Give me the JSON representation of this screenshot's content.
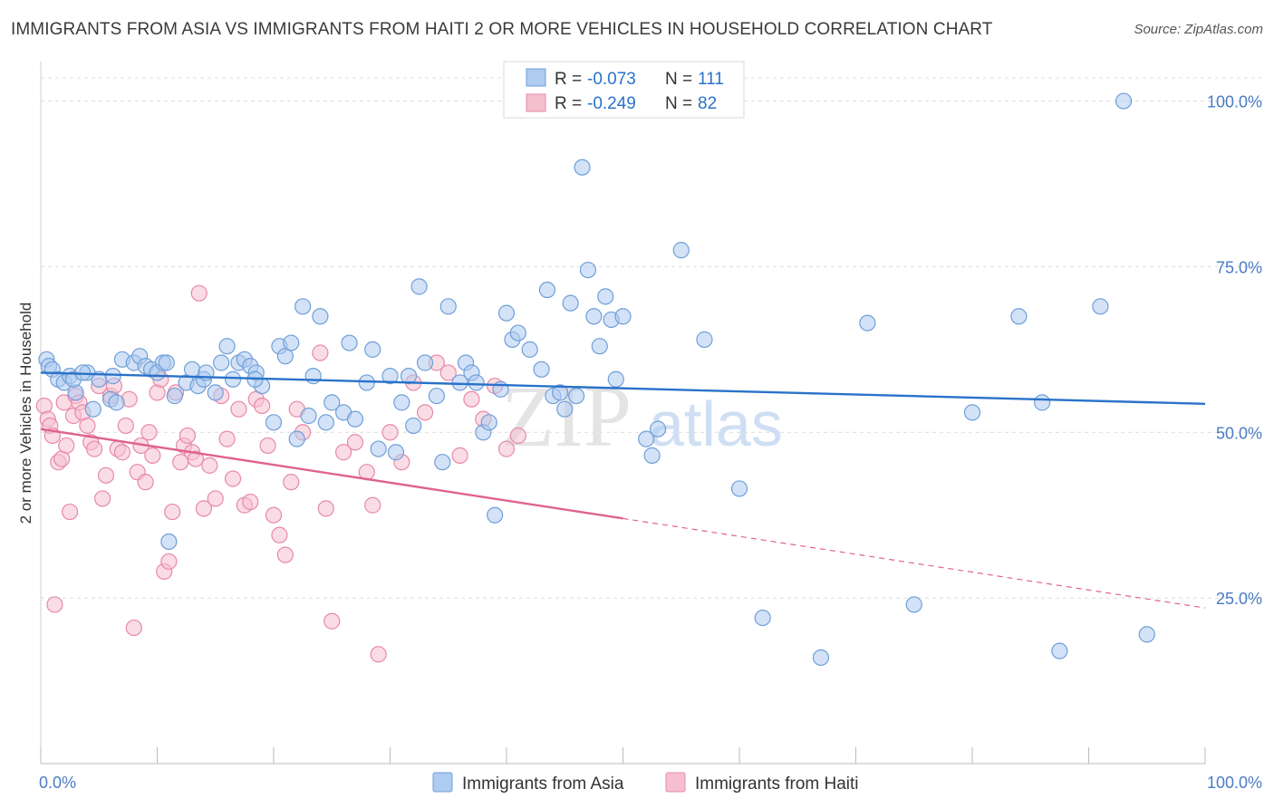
{
  "title": "IMMIGRANTS FROM ASIA VS IMMIGRANTS FROM HAITI 2 OR MORE VEHICLES IN HOUSEHOLD CORRELATION CHART",
  "source": "Source: ZipAtlas.com",
  "watermark": {
    "zip": "ZIP",
    "atlas": "atlas"
  },
  "colors": {
    "asia_fill": "#aecbf0",
    "asia_stroke": "#6f9fd8",
    "asia_line": "#2a72c9",
    "haiti_fill": "#f6bfd0",
    "haiti_stroke": "#e889a8",
    "haiti_line": "#e0628d",
    "tick_text": "#4a7cc4",
    "grid": "#dcdcdc"
  },
  "legend_box": {
    "rows": [
      {
        "r_label": "R = ",
        "r_value": "-0.073",
        "n_label": "N = ",
        "n_value": "111"
      },
      {
        "r_label": "R = ",
        "r_value": "-0.249",
        "n_label": "N = ",
        "n_value": "82"
      }
    ]
  },
  "chart_data": {
    "type": "scatter",
    "title": "IMMIGRANTS FROM ASIA VS IMMIGRANTS FROM HAITI 2 OR MORE VEHICLES IN HOUSEHOLD CORRELATION CHART",
    "xlabel": "",
    "ylabel": "2 or more Vehicles in Household",
    "xlim": [
      0,
      100
    ],
    "ylim": [
      0,
      105
    ],
    "x_tick_labels": [
      "0.0%",
      "100.0%"
    ],
    "y_ticks": [
      25,
      50,
      75,
      100
    ],
    "y_tick_labels": [
      "25.0%",
      "50.0%",
      "75.0%",
      "100.0%"
    ],
    "grid": true,
    "legend_position": "bottom-center",
    "series": [
      {
        "name": "Immigrants from Asia",
        "color": "#aecbf0",
        "r": -0.073,
        "n": 111,
        "trend": {
          "x": [
            0,
            100
          ],
          "y": [
            59.0,
            54.3
          ],
          "dashed_from": null
        },
        "x": [
          0.5,
          0.7,
          1.0,
          1.5,
          2.0,
          2.5,
          3.0,
          4.0,
          4.5,
          5.0,
          6.0,
          6.5,
          7.0,
          8.0,
          8.5,
          9.0,
          9.5,
          10.0,
          10.5,
          11.0,
          11.5,
          12.5,
          13.0,
          13.5,
          14.0,
          15.0,
          15.5,
          16.0,
          16.5,
          17.0,
          17.5,
          18.0,
          18.5,
          19.0,
          20.0,
          20.5,
          21.0,
          21.5,
          22.0,
          22.5,
          23.0,
          24.0,
          24.5,
          25.0,
          26.0,
          26.5,
          27.0,
          28.0,
          28.5,
          29.0,
          30.0,
          30.5,
          31.0,
          32.0,
          32.5,
          33.0,
          34.0,
          34.5,
          35.0,
          36.0,
          36.5,
          37.0,
          38.0,
          38.5,
          39.0,
          39.5,
          40.0,
          40.5,
          41.0,
          42.0,
          43.0,
          43.5,
          44.0,
          45.0,
          45.5,
          46.0,
          46.5,
          47.0,
          47.5,
          48.0,
          48.5,
          49.0,
          50.0,
          52.0,
          52.5,
          53.0,
          55.0,
          57.0,
          60.0,
          62.0,
          67.0,
          71.0,
          75.0,
          80.0,
          84.0,
          86.0,
          87.5,
          91.0,
          93.0,
          95.0,
          2.8,
          3.6,
          6.2,
          10.8,
          14.2,
          18.4,
          23.4,
          31.6,
          37.4,
          44.6,
          49.4
        ],
        "y": [
          61.0,
          60.0,
          59.5,
          58.0,
          57.5,
          58.5,
          56.0,
          59.0,
          53.5,
          58.0,
          55.0,
          54.5,
          61.0,
          60.5,
          61.5,
          60.0,
          59.5,
          59.0,
          60.5,
          33.5,
          55.5,
          57.5,
          59.5,
          57.0,
          58.0,
          56.0,
          60.5,
          63.0,
          58.0,
          60.5,
          61.0,
          60.0,
          59.0,
          57.0,
          51.5,
          63.0,
          61.5,
          63.5,
          49.0,
          69.0,
          52.5,
          67.5,
          51.5,
          54.5,
          53.0,
          63.5,
          52.0,
          57.5,
          62.5,
          47.5,
          58.5,
          47.0,
          54.5,
          51.0,
          72.0,
          60.5,
          55.5,
          45.5,
          69.0,
          57.5,
          60.5,
          59.0,
          50.0,
          51.5,
          37.5,
          56.5,
          68.0,
          64.0,
          65.0,
          62.5,
          59.5,
          71.5,
          55.5,
          53.5,
          69.5,
          55.5,
          90.0,
          74.5,
          67.5,
          63.0,
          70.5,
          67.0,
          67.5,
          49.0,
          46.5,
          50.5,
          77.5,
          64.0,
          41.5,
          22.0,
          16.0,
          66.5,
          24.0,
          53.0,
          67.5,
          54.5,
          17.0,
          69.0,
          100.0,
          19.5,
          58.0,
          59.0,
          58.5,
          60.5,
          59.0,
          58.0,
          58.5,
          58.5,
          57.5,
          56.0,
          58.0
        ]
      },
      {
        "name": "Immigrants from Haiti",
        "color": "#f6bfd0",
        "r": -0.249,
        "n": 82,
        "trend": {
          "x": [
            0,
            50,
            100
          ],
          "y": [
            50.5,
            37.0,
            23.5
          ],
          "dashed_from": 50
        },
        "x": [
          0.3,
          0.6,
          0.8,
          1.0,
          1.2,
          1.5,
          1.8,
          2.0,
          2.2,
          2.5,
          2.8,
          3.0,
          3.3,
          3.6,
          4.0,
          4.3,
          4.6,
          5.0,
          5.3,
          5.6,
          6.0,
          6.3,
          6.6,
          7.0,
          7.3,
          7.6,
          8.0,
          8.3,
          8.6,
          9.0,
          9.3,
          9.6,
          10.0,
          10.3,
          10.6,
          11.0,
          11.3,
          11.6,
          12.0,
          12.3,
          12.6,
          13.0,
          13.3,
          13.6,
          14.0,
          14.5,
          15.0,
          15.5,
          16.0,
          16.5,
          17.0,
          17.5,
          18.0,
          18.5,
          19.0,
          19.5,
          20.0,
          20.5,
          21.0,
          21.5,
          22.0,
          22.5,
          24.0,
          24.5,
          25.0,
          26.0,
          27.0,
          28.0,
          28.5,
          29.0,
          30.0,
          31.0,
          32.0,
          33.0,
          34.0,
          35.0,
          36.0,
          37.0,
          38.0,
          39.0,
          40.0,
          41.0
        ],
        "y": [
          54.0,
          52.0,
          51.0,
          49.5,
          24.0,
          45.5,
          46.0,
          54.5,
          48.0,
          38.0,
          52.5,
          55.5,
          54.5,
          53.0,
          51.0,
          48.5,
          47.5,
          57.0,
          40.0,
          43.5,
          55.5,
          57.0,
          47.5,
          47.0,
          51.0,
          55.0,
          20.5,
          44.0,
          48.0,
          42.5,
          50.0,
          46.5,
          56.0,
          58.0,
          29.0,
          30.5,
          38.0,
          56.0,
          45.5,
          48.0,
          49.5,
          47.0,
          46.0,
          71.0,
          38.5,
          45.0,
          40.0,
          55.5,
          49.0,
          43.0,
          53.5,
          39.0,
          39.5,
          55.0,
          54.0,
          48.0,
          37.5,
          34.5,
          31.5,
          42.5,
          53.5,
          50.0,
          62.0,
          38.5,
          21.5,
          47.0,
          48.5,
          44.0,
          39.0,
          16.5,
          50.0,
          45.5,
          57.5,
          53.0,
          60.5,
          59.0,
          46.5,
          55.0,
          52.0,
          57.0,
          47.5,
          49.5
        ]
      }
    ]
  },
  "legend": {
    "items": [
      {
        "label": "Immigrants from Asia"
      },
      {
        "label": "Immigrants from Haiti"
      }
    ]
  }
}
